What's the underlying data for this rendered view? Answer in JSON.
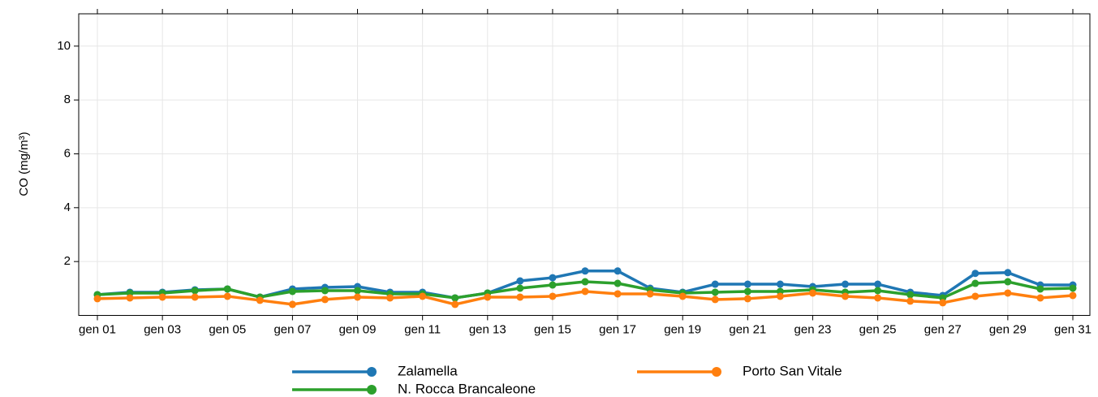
{
  "chart_data": {
    "type": "line",
    "y_label": "CO (mg/m³)",
    "categories": [
      "gen 01",
      null,
      "gen 03",
      null,
      "gen 05",
      null,
      "gen 07",
      null,
      "gen 09",
      null,
      "gen 11",
      null,
      "gen 13",
      null,
      "gen 15",
      null,
      "gen 17",
      null,
      "gen 19",
      null,
      "gen 21",
      null,
      "gen 23",
      null,
      "gen 25",
      null,
      "gen 27",
      null,
      "gen 29",
      null,
      "gen 31"
    ],
    "series": [
      {
        "name": "Zalamella",
        "color": "#1f77b4",
        "values": [
          0.77,
          0.86,
          0.86,
          0.95,
          0.98,
          0.68,
          0.98,
          1.04,
          1.07,
          0.86,
          0.86,
          0.65,
          0.83,
          1.28,
          1.4,
          1.65,
          1.65,
          1.01,
          0.86,
          1.16,
          1.16,
          1.16,
          1.07,
          1.16,
          1.16,
          0.86,
          0.74,
          1.56,
          1.59,
          1.13,
          1.13
        ]
      },
      {
        "name": "N. Rocca Brancaleone",
        "color": "#2ca02c",
        "values": [
          0.77,
          0.83,
          0.83,
          0.92,
          0.98,
          0.68,
          0.89,
          0.92,
          0.92,
          0.8,
          0.8,
          0.65,
          0.83,
          1.01,
          1.13,
          1.25,
          1.19,
          0.95,
          0.83,
          0.86,
          0.89,
          0.89,
          0.95,
          0.86,
          0.92,
          0.77,
          0.65,
          1.19,
          1.25,
          0.98,
          1.01
        ]
      },
      {
        "name": "Porto San Vitale",
        "color": "#ff7f0e",
        "values": [
          0.62,
          0.65,
          0.68,
          0.68,
          0.71,
          0.56,
          0.41,
          0.59,
          0.68,
          0.65,
          0.71,
          0.41,
          0.68,
          0.68,
          0.71,
          0.89,
          0.8,
          0.8,
          0.71,
          0.59,
          0.62,
          0.71,
          0.83,
          0.71,
          0.65,
          0.53,
          0.47,
          0.71,
          0.83,
          0.65,
          0.74
        ]
      }
    ],
    "ylim": [
      0,
      11.2
    ],
    "yticks": [
      2,
      4,
      6,
      8,
      10
    ],
    "grid": true
  }
}
